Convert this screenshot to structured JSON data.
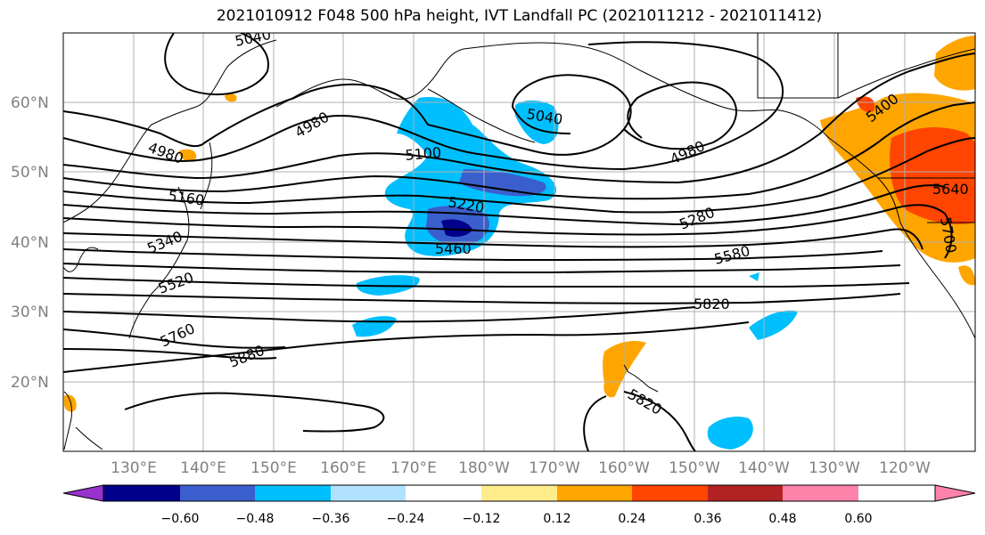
{
  "title": "2021010912 F048 500 hPa height, IVT Landfall PC (2021011212 - 2021011412)",
  "map": {
    "lat_labels": [
      "60°N",
      "50°N",
      "40°N",
      "30°N",
      "20°N"
    ],
    "lon_labels": [
      "130°E",
      "140°E",
      "150°E",
      "160°E",
      "170°E",
      "180°W",
      "170°W",
      "160°W",
      "150°W",
      "140°W",
      "130°W",
      "120°W"
    ],
    "contour_labels": [
      "5040",
      "4980",
      "4980",
      "5040",
      "4980",
      "5100",
      "5160",
      "5220",
      "5340",
      "5460",
      "5400",
      "5280",
      "5580",
      "5520",
      "5640",
      "5700",
      "5760",
      "5820",
      "5880",
      "5820"
    ]
  },
  "colorbar": {
    "ticks": [
      "−0.60",
      "−0.48",
      "−0.36",
      "−0.24",
      "−0.12",
      "0.12",
      "0.24",
      "0.36",
      "0.48",
      "0.60"
    ],
    "colors": [
      "#9932cc",
      "#00008b",
      "#3a5fcd",
      "#00bfff",
      "#b0e2ff",
      "#ffffff",
      "#ffec8b",
      "#ffa500",
      "#ff4500",
      "#b22222",
      "#ff82ab"
    ]
  }
}
